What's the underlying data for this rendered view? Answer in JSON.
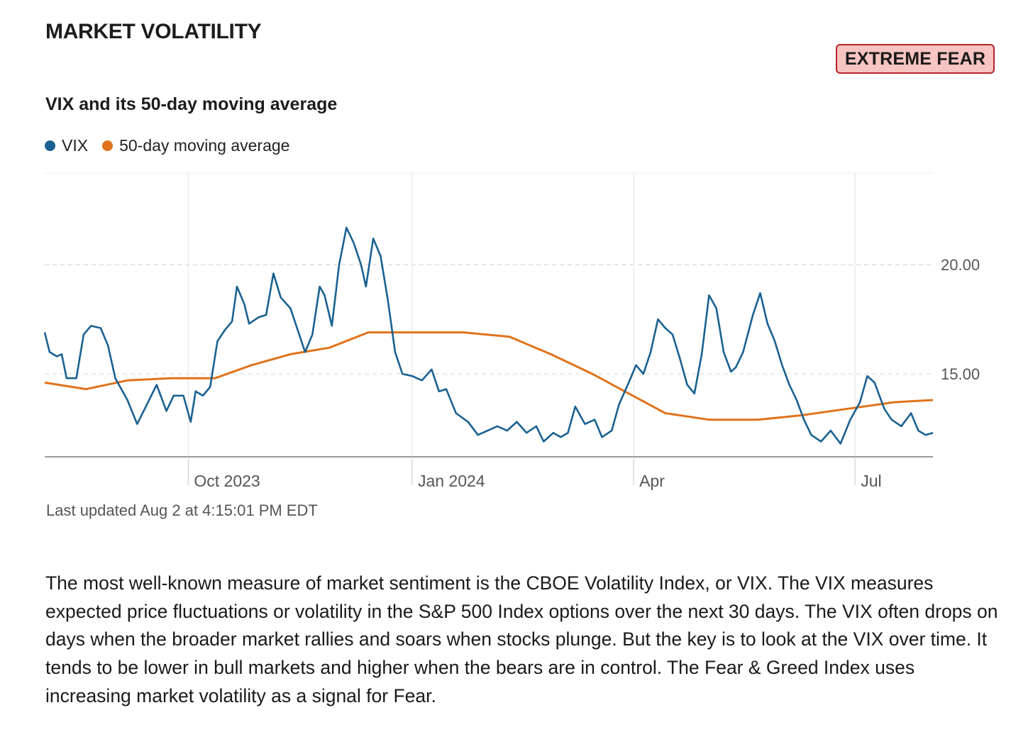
{
  "header": {
    "section_title": "MARKET VOLATILITY",
    "badge": "EXTREME FEAR",
    "badge_colors": {
      "fill": "#f7c4c2",
      "border": "#b3242b"
    }
  },
  "chart_data": {
    "type": "line",
    "title": "VIX and its 50-day moving average",
    "xlabel": "",
    "ylabel": "",
    "ylim": [
      11.2,
      24.2
    ],
    "yticks": [
      15,
      20
    ],
    "ytick_labels": [
      "15.00",
      "20.00"
    ],
    "x_ticks": [
      {
        "label": "Oct 2023",
        "date": "2023-10-01"
      },
      {
        "label": "Jan 2024",
        "date": "2024-01-01"
      },
      {
        "label": "Apr",
        "date": "2024-04-01"
      },
      {
        "label": "Jul",
        "date": "2024-07-01"
      }
    ],
    "x_range": [
      "2023-08-03",
      "2024-08-02"
    ],
    "grid": true,
    "legend_position": "top-left",
    "series": [
      {
        "name": "VIX",
        "color": "#1a6191",
        "points": [
          [
            "2023-08-03",
            16.9
          ],
          [
            "2023-08-05",
            16.0
          ],
          [
            "2023-08-08",
            15.8
          ],
          [
            "2023-08-10",
            15.9
          ],
          [
            "2023-08-12",
            14.8
          ],
          [
            "2023-08-16",
            14.8
          ],
          [
            "2023-08-19",
            16.8
          ],
          [
            "2023-08-22",
            17.2
          ],
          [
            "2023-08-26",
            17.1
          ],
          [
            "2023-08-29",
            16.3
          ],
          [
            "2023-09-01",
            14.8
          ],
          [
            "2023-09-06",
            13.8
          ],
          [
            "2023-09-10",
            12.7
          ],
          [
            "2023-09-14",
            13.6
          ],
          [
            "2023-09-18",
            14.5
          ],
          [
            "2023-09-22",
            13.3
          ],
          [
            "2023-09-25",
            14.0
          ],
          [
            "2023-09-29",
            14.0
          ],
          [
            "2023-10-02",
            12.8
          ],
          [
            "2023-10-04",
            14.2
          ],
          [
            "2023-10-07",
            14.0
          ],
          [
            "2023-10-10",
            14.4
          ],
          [
            "2023-10-13",
            16.5
          ],
          [
            "2023-10-16",
            17.0
          ],
          [
            "2023-10-19",
            17.4
          ],
          [
            "2023-10-21",
            19.0
          ],
          [
            "2023-10-24",
            18.2
          ],
          [
            "2023-10-26",
            17.3
          ],
          [
            "2023-10-30",
            17.6
          ],
          [
            "2023-11-02",
            17.7
          ],
          [
            "2023-11-05",
            19.6
          ],
          [
            "2023-11-08",
            18.5
          ],
          [
            "2023-11-12",
            18.0
          ],
          [
            "2023-11-15",
            17.0
          ],
          [
            "2023-11-18",
            16.0
          ],
          [
            "2023-11-21",
            16.8
          ],
          [
            "2023-11-24",
            19.0
          ],
          [
            "2023-11-26",
            18.6
          ],
          [
            "2023-11-29",
            17.2
          ],
          [
            "2023-12-02",
            20.0
          ],
          [
            "2023-12-05",
            21.7
          ],
          [
            "2023-12-08",
            21.0
          ],
          [
            "2023-12-11",
            20.0
          ],
          [
            "2023-12-13",
            19.0
          ],
          [
            "2023-12-16",
            21.2
          ],
          [
            "2023-12-19",
            20.4
          ],
          [
            "2023-12-22",
            18.4
          ],
          [
            "2023-12-25",
            16.0
          ],
          [
            "2023-12-28",
            15.0
          ],
          [
            "2024-01-01",
            14.9
          ],
          [
            "2024-01-05",
            14.7
          ],
          [
            "2024-01-09",
            15.2
          ],
          [
            "2024-01-12",
            14.2
          ],
          [
            "2024-01-15",
            14.3
          ],
          [
            "2024-01-19",
            13.2
          ],
          [
            "2024-01-24",
            12.8
          ],
          [
            "2024-01-28",
            12.2
          ],
          [
            "2024-02-01",
            12.4
          ],
          [
            "2024-02-05",
            12.6
          ],
          [
            "2024-02-09",
            12.4
          ],
          [
            "2024-02-13",
            12.8
          ],
          [
            "2024-02-17",
            12.3
          ],
          [
            "2024-02-21",
            12.6
          ],
          [
            "2024-02-24",
            11.9
          ],
          [
            "2024-02-28",
            12.3
          ],
          [
            "2024-03-02",
            12.1
          ],
          [
            "2024-03-05",
            12.3
          ],
          [
            "2024-03-08",
            13.5
          ],
          [
            "2024-03-12",
            12.7
          ],
          [
            "2024-03-16",
            12.9
          ],
          [
            "2024-03-19",
            12.1
          ],
          [
            "2024-03-23",
            12.4
          ],
          [
            "2024-03-26",
            13.6
          ],
          [
            "2024-03-30",
            14.6
          ],
          [
            "2024-04-02",
            15.4
          ],
          [
            "2024-04-05",
            15.0
          ],
          [
            "2024-04-08",
            16.0
          ],
          [
            "2024-04-11",
            17.5
          ],
          [
            "2024-04-14",
            17.1
          ],
          [
            "2024-04-17",
            16.8
          ],
          [
            "2024-04-20",
            15.7
          ],
          [
            "2024-04-23",
            14.5
          ],
          [
            "2024-04-26",
            14.1
          ],
          [
            "2024-04-29",
            15.9
          ],
          [
            "2024-05-02",
            18.6
          ],
          [
            "2024-05-05",
            18.0
          ],
          [
            "2024-05-08",
            16.0
          ],
          [
            "2024-05-11",
            15.1
          ],
          [
            "2024-05-13",
            15.3
          ],
          [
            "2024-05-16",
            16.0
          ],
          [
            "2024-05-20",
            17.7
          ],
          [
            "2024-05-23",
            18.7
          ],
          [
            "2024-05-26",
            17.3
          ],
          [
            "2024-05-29",
            16.5
          ],
          [
            "2024-06-01",
            15.4
          ],
          [
            "2024-06-04",
            14.5
          ],
          [
            "2024-06-07",
            13.8
          ],
          [
            "2024-06-10",
            12.9
          ],
          [
            "2024-06-13",
            12.2
          ],
          [
            "2024-06-17",
            11.9
          ],
          [
            "2024-06-21",
            12.4
          ],
          [
            "2024-06-25",
            11.8
          ],
          [
            "2024-06-29",
            12.9
          ],
          [
            "2024-07-03",
            13.7
          ],
          [
            "2024-07-06",
            14.9
          ],
          [
            "2024-07-09",
            14.6
          ],
          [
            "2024-07-13",
            13.4
          ],
          [
            "2024-07-16",
            12.9
          ],
          [
            "2024-07-20",
            12.6
          ],
          [
            "2024-07-24",
            13.2
          ],
          [
            "2024-07-27",
            12.4
          ],
          [
            "2024-07-30",
            12.2
          ],
          [
            "2024-08-02",
            12.3
          ]
        ]
      },
      {
        "name": "50-day moving average",
        "color": "#e0731b",
        "points": [
          [
            "2023-08-03",
            14.6
          ],
          [
            "2023-08-20",
            14.3
          ],
          [
            "2023-09-06",
            14.7
          ],
          [
            "2023-09-24",
            14.8
          ],
          [
            "2023-10-12",
            14.8
          ],
          [
            "2023-10-27",
            15.4
          ],
          [
            "2023-11-12",
            15.9
          ],
          [
            "2023-11-28",
            16.2
          ],
          [
            "2023-12-14",
            16.9
          ],
          [
            "2023-12-31",
            16.9
          ],
          [
            "2024-01-22",
            16.9
          ],
          [
            "2024-02-10",
            16.7
          ],
          [
            "2024-02-27",
            15.9
          ],
          [
            "2024-03-15",
            15.0
          ],
          [
            "2024-03-30",
            14.1
          ],
          [
            "2024-04-14",
            13.2
          ],
          [
            "2024-05-02",
            12.9
          ],
          [
            "2024-05-22",
            12.9
          ],
          [
            "2024-06-09",
            13.1
          ],
          [
            "2024-06-28",
            13.4
          ],
          [
            "2024-07-17",
            13.7
          ],
          [
            "2024-08-02",
            13.8
          ]
        ]
      }
    ]
  },
  "footer": {
    "last_updated": "Last updated Aug 2 at 4:15:01 PM EDT",
    "description": "The most well-known measure of market sentiment is the CBOE Volatility Index, or VIX. The VIX measures expected price fluctuations or volatility in the S&P 500 Index options over the next 30 days. The VIX often drops on days when the broader market rallies and soars when stocks plunge. But the key is to look at the VIX over time. It tends to be lower in bull markets and higher when the bears are in control. The Fear & Greed Index uses increasing market volatility as a signal for Fear."
  }
}
